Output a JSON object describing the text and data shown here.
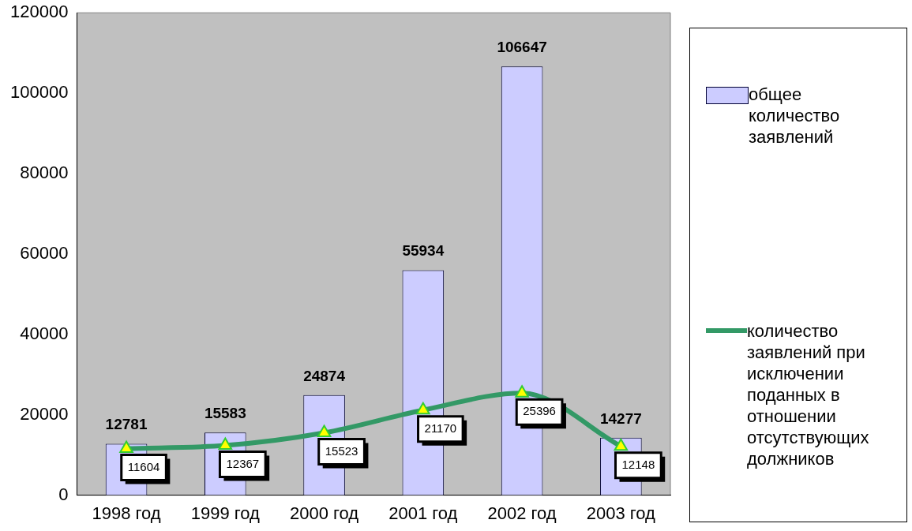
{
  "chart_data": {
    "type": "bar",
    "categories": [
      "1998 год",
      "1999 год",
      "2000 год",
      "2001 год",
      "2002 год",
      "2003 год"
    ],
    "series": [
      {
        "name": "общее количество заявлений",
        "color": "#ccccff",
        "values": [
          12781,
          15583,
          24874,
          55934,
          106647,
          14277
        ]
      },
      {
        "name": "количество заявлений при исключении поданных в отношении отсутствующих должников",
        "type": "line",
        "color": "#339966",
        "marker": "triangle",
        "values": [
          11604,
          12367,
          15523,
          21170,
          25396,
          12148
        ]
      }
    ],
    "ylim": [
      0,
      120000
    ],
    "yticks": [
      0,
      20000,
      40000,
      60000,
      80000,
      100000,
      120000
    ],
    "data_labels": true,
    "legend": "right",
    "grid": false
  }
}
